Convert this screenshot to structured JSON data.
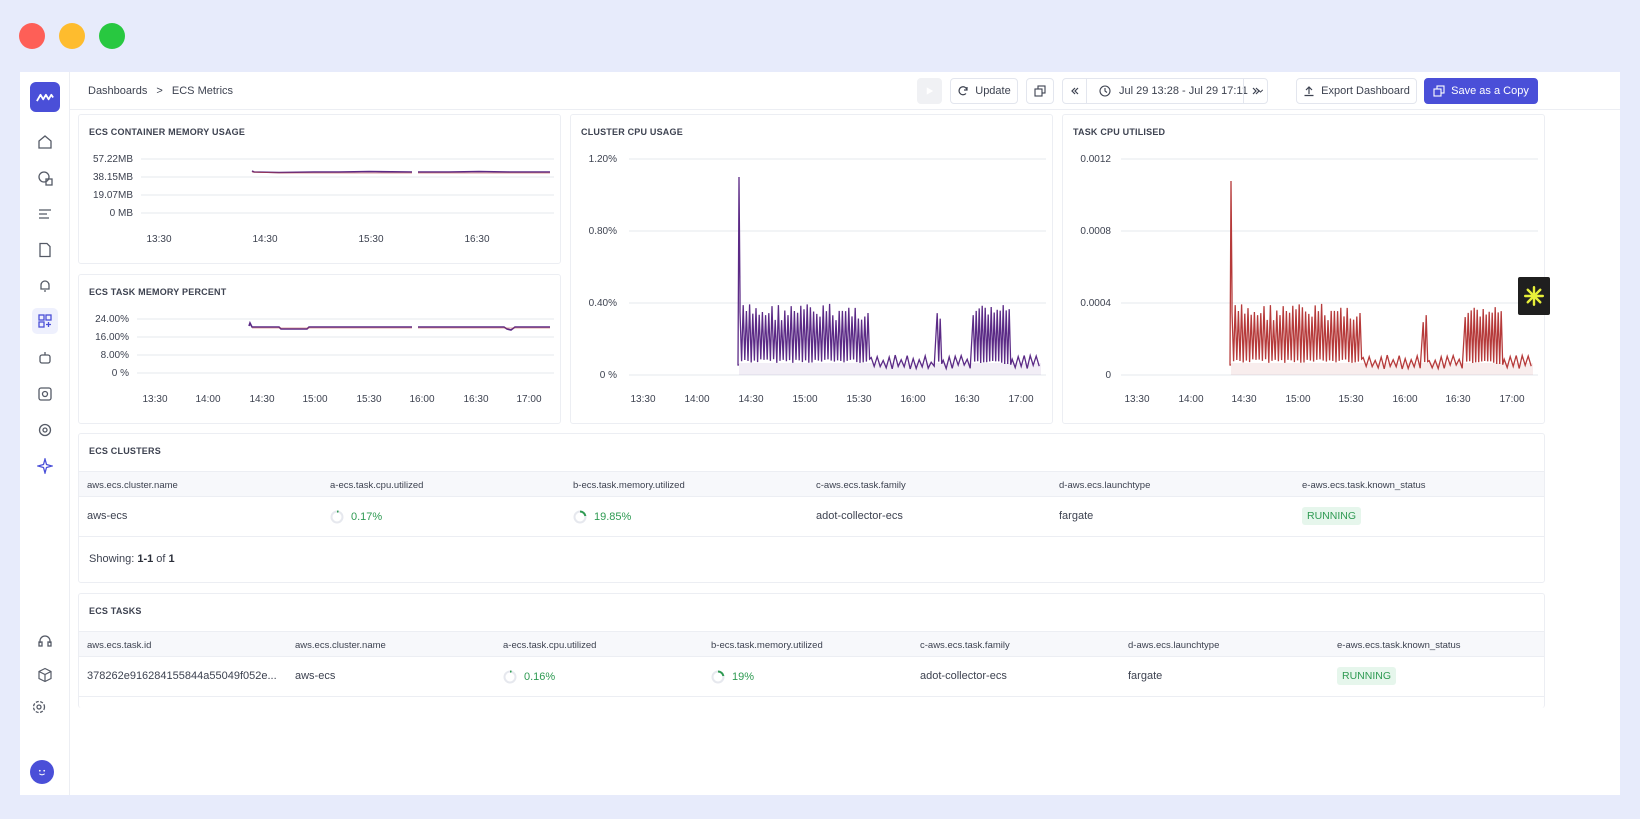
{
  "window_controls": {
    "close_color": "#fe5f57",
    "minimize_color": "#febc2e",
    "maximize_color": "#28c840"
  },
  "sidebar": {
    "icons": [
      "home-icon",
      "infra-icon",
      "logs-icon",
      "reports-icon",
      "alerts-icon",
      "dashboards-icon",
      "bot-icon",
      "synthetics-icon",
      "settings-gear-icon",
      "ai-sparkle-icon"
    ],
    "bottom_icons": [
      "support-icon",
      "package-icon",
      "settings-icon"
    ],
    "accent": "#4a4fd8"
  },
  "breadcrumb": {
    "root": "Dashboards",
    "separator": ">",
    "current": "ECS Metrics"
  },
  "toolbar": {
    "update_label": "Update",
    "time_range": "Jul 29 13:28 - Jul 29 17:11",
    "export_label": "Export Dashboard",
    "save_copy_label": "Save as a Copy"
  },
  "panels": {
    "memory_usage": {
      "title": "ECS CONTAINER MEMORY USAGE",
      "y_ticks": [
        "57.22MB",
        "38.15MB",
        "19.07MB",
        "0 MB"
      ],
      "x_ticks": [
        "13:30",
        "14:30",
        "15:30",
        "16:30"
      ]
    },
    "task_memory": {
      "title": "ECS TASK MEMORY PERCENT",
      "y_ticks": [
        "24.00%",
        "16.00%",
        "8.00%",
        "0 %"
      ],
      "x_ticks": [
        "13:30",
        "14:00",
        "14:30",
        "15:00",
        "15:30",
        "16:00",
        "16:30",
        "17:00"
      ]
    },
    "cluster_cpu": {
      "title": "CLUSTER CPU USAGE",
      "y_ticks": [
        "1.20%",
        "0.80%",
        "0.40%",
        "0 %"
      ],
      "x_ticks": [
        "13:30",
        "14:00",
        "14:30",
        "15:00",
        "15:30",
        "16:00",
        "16:30",
        "17:00"
      ],
      "color": "#5b2a86"
    },
    "task_cpu": {
      "title": "TASK CPU UTILISED",
      "y_ticks": [
        "0.0012",
        "0.0008",
        "0.0004",
        "0"
      ],
      "x_ticks": [
        "13:30",
        "14:00",
        "14:30",
        "15:00",
        "15:30",
        "16:00",
        "16:30",
        "17:00"
      ],
      "color": "#b63a3a"
    }
  },
  "clusters_table": {
    "title": "ECS CLUSTERS",
    "columns": [
      "aws.ecs.cluster.name",
      "a-ecs.task.cpu.utilized",
      "b-ecs.task.memory.utilized",
      "c-aws.ecs.task.family",
      "d-aws.ecs.launchtype",
      "e-aws.ecs.task.known_status"
    ],
    "rows": [
      {
        "name": "aws-ecs",
        "cpu": "0.17%",
        "cpu_fraction": 0.17,
        "memory": "19.85%",
        "memory_fraction": 0.1985,
        "family": "adot-collector-ecs",
        "launchtype": "fargate",
        "status": "RUNNING"
      }
    ],
    "showing_prefix": "Showing:",
    "showing_range": "1-1",
    "showing_of": "of",
    "showing_total": "1"
  },
  "tasks_table": {
    "title": "ECS TASKS",
    "columns": [
      "aws.ecs.task.id",
      "aws.ecs.cluster.name",
      "a-ecs.task.cpu.utilized",
      "b-ecs.task.memory.utilized",
      "c-aws.ecs.task.family",
      "d-aws.ecs.launchtype",
      "e-aws.ecs.task.known_status"
    ],
    "rows": [
      {
        "task_id": "378262e916284155844a55049f052e...",
        "cluster": "aws-ecs",
        "cpu": "0.16%",
        "cpu_fraction": 0.16,
        "memory": "19%",
        "memory_fraction": 0.19,
        "family": "adot-collector-ecs",
        "launchtype": "fargate",
        "status": "RUNNING"
      }
    ]
  }
}
